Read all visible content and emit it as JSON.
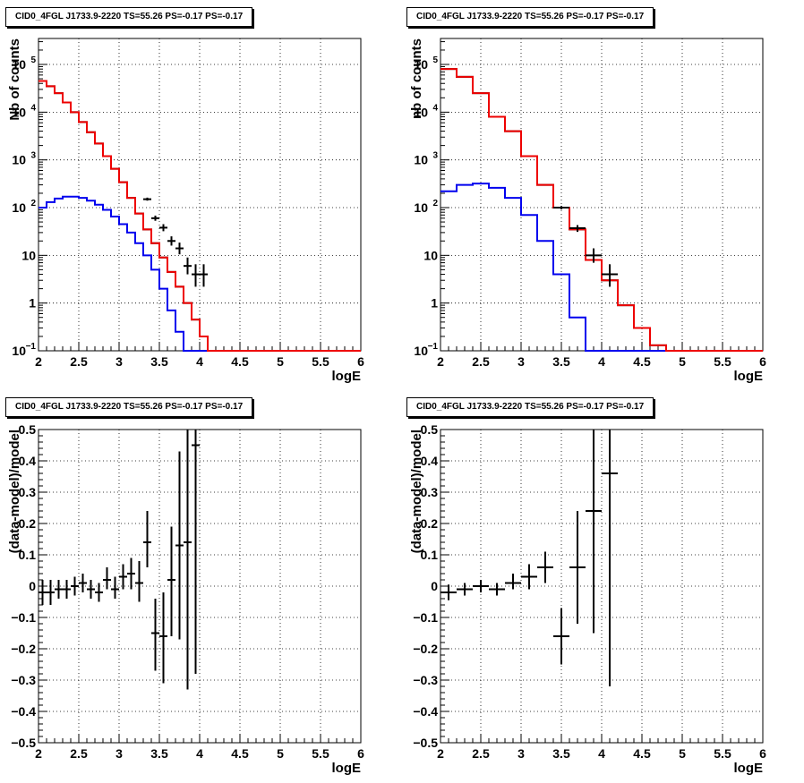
{
  "chart_data": [
    {
      "type": "line",
      "title": "CID0_4FGL J1733.9-2220 TS=55.26 PS=-0.17 PS=-0.17",
      "xlabel": "logE",
      "ylabel": "Nb of counts",
      "xlim": [
        2,
        6
      ],
      "ylim": [
        0.1,
        350000
      ],
      "yscale": "log",
      "grid": true,
      "xticks": [
        "2",
        "2.5",
        "3",
        "3.5",
        "4",
        "4.5",
        "5",
        "5.5",
        "6"
      ],
      "yticks": [
        {
          "value": 0.1,
          "label": "10",
          "exp": "−1"
        },
        {
          "value": 1,
          "label": "1",
          "exp": ""
        },
        {
          "value": 10,
          "label": "10",
          "exp": ""
        },
        {
          "value": 100,
          "label": "10",
          "exp": "2"
        },
        {
          "value": 1000,
          "label": "10",
          "exp": "3"
        },
        {
          "value": 10000,
          "label": "10",
          "exp": "4"
        },
        {
          "value": 100000,
          "label": "10",
          "exp": "5"
        }
      ],
      "bin_edges": [
        2.0,
        2.1,
        2.2,
        2.3,
        2.4,
        2.5,
        2.6,
        2.7,
        2.8,
        2.9,
        3.0,
        3.1,
        3.2,
        3.3,
        3.4,
        3.5,
        3.6,
        3.7,
        3.8,
        3.9,
        4.0,
        4.1,
        4.2,
        4.3,
        4.4,
        4.5,
        4.6,
        4.7,
        4.8,
        4.9,
        5.0,
        5.1,
        5.2,
        5.3,
        5.4,
        5.5,
        5.6,
        5.7,
        5.8,
        5.9,
        6.0
      ],
      "series": [
        {
          "name": "",
          "color": "#0000ee",
          "style": "step",
          "values": [
            100,
            130,
            155,
            170,
            170,
            160,
            140,
            115,
            90,
            65,
            45,
            30,
            18,
            10,
            5,
            2,
            0.7,
            0.25,
            0.1,
            0.1,
            0.1,
            0.1,
            0.1,
            0.1,
            0.1,
            0.1,
            0.1,
            0.1,
            0.1,
            0.1,
            0.1,
            0.1,
            0.1,
            0.1,
            0.1,
            0.1,
            0.1,
            0.1,
            0.1,
            0.1
          ]
        },
        {
          "name": "",
          "color": "#000000",
          "style": "step",
          "values": [
            45000,
            35000,
            25000,
            16000,
            10000,
            6200,
            3800,
            2200,
            1200,
            650,
            340,
            160,
            75,
            35,
            18,
            9,
            4.5,
            2.2,
            1.0,
            0.45,
            0.2,
            0.1,
            0.1,
            0.1,
            0.1,
            0.1,
            0.1,
            0.1,
            0.1,
            0.1,
            0.1,
            0.1,
            0.1,
            0.1,
            0.1,
            0.1,
            0.1,
            0.1,
            0.1,
            0.1
          ]
        },
        {
          "name": "",
          "color": "#ee0000",
          "style": "step",
          "values": [
            45000,
            35000,
            25000,
            16000,
            10000,
            6200,
            3800,
            2200,
            1200,
            650,
            340,
            160,
            75,
            35,
            18,
            9,
            4.5,
            2.2,
            1.0,
            0.45,
            0.2,
            0.1,
            0.1,
            0.1,
            0.1,
            0.1,
            0.1,
            0.1,
            0.1,
            0.1,
            0.1,
            0.1,
            0.1,
            0.1,
            0.1,
            0.1,
            0.1,
            0.1,
            0.1,
            0.1
          ]
        }
      ],
      "points": {
        "color": "#000000",
        "xerr": 0.05,
        "data": [
          {
            "x": 3.35,
            "y": 150,
            "lo": 140,
            "hi": 162
          },
          {
            "x": 3.45,
            "y": 60,
            "lo": 53,
            "hi": 68
          },
          {
            "x": 3.55,
            "y": 38,
            "lo": 32,
            "hi": 45
          },
          {
            "x": 3.65,
            "y": 20,
            "lo": 16,
            "hi": 25
          },
          {
            "x": 3.75,
            "y": 14,
            "lo": 10.5,
            "hi": 18.5
          },
          {
            "x": 3.85,
            "y": 6,
            "lo": 4,
            "hi": 9
          },
          {
            "x": 3.95,
            "y": 4,
            "lo": 2.2,
            "hi": 6.5
          },
          {
            "x": 4.05,
            "y": 4,
            "lo": 2.2,
            "hi": 6.5
          }
        ]
      }
    },
    {
      "type": "line",
      "title": "CID0_4FGL J1733.9-2220 TS=55.26 PS=-0.17 PS=-0.17",
      "xlabel": "logE",
      "ylabel": "nb of counts",
      "xlim": [
        2,
        6
      ],
      "ylim": [
        0.1,
        350000
      ],
      "yscale": "log",
      "grid": true,
      "xticks": [
        "2",
        "2.5",
        "3",
        "3.5",
        "4",
        "4.5",
        "5",
        "5.5",
        "6"
      ],
      "yticks": [
        {
          "value": 0.1,
          "label": "10",
          "exp": "−1"
        },
        {
          "value": 1,
          "label": "1",
          "exp": ""
        },
        {
          "value": 10,
          "label": "10",
          "exp": ""
        },
        {
          "value": 100,
          "label": "10",
          "exp": "2"
        },
        {
          "value": 1000,
          "label": "10",
          "exp": "3"
        },
        {
          "value": 10000,
          "label": "10",
          "exp": "4"
        },
        {
          "value": 100000,
          "label": "10",
          "exp": "5"
        }
      ],
      "bin_edges": [
        2.0,
        2.2,
        2.4,
        2.6,
        2.8,
        3.0,
        3.2,
        3.4,
        3.6,
        3.8,
        4.0,
        4.2,
        4.4,
        4.6,
        4.8,
        5.0,
        5.2,
        5.4,
        5.6,
        5.8,
        6.0
      ],
      "series": [
        {
          "name": "",
          "color": "#0000ee",
          "style": "step",
          "values": [
            220,
            300,
            320,
            260,
            160,
            70,
            20,
            4,
            0.5,
            0.1,
            0.1,
            0.1,
            0.1,
            0.1,
            0.1,
            0.1,
            0.1,
            0.1,
            0.1,
            0.1
          ]
        },
        {
          "name": "",
          "color": "#000000",
          "style": "step",
          "values": [
            80000,
            55000,
            25000,
            8000,
            4000,
            1200,
            300,
            100,
            35,
            8,
            3,
            0.9,
            0.3,
            0.13,
            0.1,
            0.1,
            0.1,
            0.1,
            0.1,
            0.1
          ]
        },
        {
          "name": "",
          "color": "#ee0000",
          "style": "step",
          "values": [
            80000,
            55000,
            25000,
            8000,
            4000,
            1200,
            300,
            100,
            35,
            8,
            3,
            0.9,
            0.3,
            0.13,
            0.1,
            0.1,
            0.1,
            0.1,
            0.1,
            0.1
          ]
        }
      ],
      "points": {
        "color": "#000000",
        "xerr": 0.1,
        "data": [
          {
            "x": 3.5,
            "y": 100,
            "lo": 92,
            "hi": 108
          },
          {
            "x": 3.7,
            "y": 37,
            "lo": 31,
            "hi": 43
          },
          {
            "x": 3.9,
            "y": 10,
            "lo": 7,
            "hi": 14
          },
          {
            "x": 4.1,
            "y": 4,
            "lo": 2.2,
            "hi": 6.5
          }
        ]
      }
    },
    {
      "type": "scatter",
      "title": "CID0_4FGL J1733.9-2220 TS=55.26 PS=-0.17 PS=-0.17",
      "xlabel": "logE",
      "ylabel": "(data-model)/model",
      "xlim": [
        2,
        6
      ],
      "ylim": [
        -0.5,
        0.5
      ],
      "yscale": "linear",
      "grid": true,
      "xticks": [
        "2",
        "2.5",
        "3",
        "3.5",
        "4",
        "4.5",
        "5",
        "5.5",
        "6"
      ],
      "yticks": [
        {
          "value": -0.5,
          "label": "−0.5"
        },
        {
          "value": -0.4,
          "label": "−0.4"
        },
        {
          "value": -0.3,
          "label": "−0.3"
        },
        {
          "value": -0.2,
          "label": "−0.2"
        },
        {
          "value": -0.1,
          "label": "−0.1"
        },
        {
          "value": 0,
          "label": "0"
        },
        {
          "value": 0.1,
          "label": "0.1"
        },
        {
          "value": 0.2,
          "label": "0.2"
        },
        {
          "value": 0.3,
          "label": "0.3"
        },
        {
          "value": 0.4,
          "label": "0.4"
        },
        {
          "value": 0.5,
          "label": "0.5"
        }
      ],
      "points": {
        "color": "#000000",
        "xerr": 0.05,
        "data": [
          {
            "x": 2.05,
            "y": -0.02,
            "lo": -0.06,
            "hi": 0.02
          },
          {
            "x": 2.15,
            "y": -0.02,
            "lo": -0.06,
            "hi": 0.02
          },
          {
            "x": 2.25,
            "y": -0.01,
            "lo": -0.04,
            "hi": 0.02
          },
          {
            "x": 2.35,
            "y": -0.01,
            "lo": -0.04,
            "hi": 0.02
          },
          {
            "x": 2.45,
            "y": 0.0,
            "lo": -0.03,
            "hi": 0.03
          },
          {
            "x": 2.55,
            "y": 0.01,
            "lo": -0.02,
            "hi": 0.04
          },
          {
            "x": 2.65,
            "y": -0.01,
            "lo": -0.04,
            "hi": 0.02
          },
          {
            "x": 2.75,
            "y": -0.02,
            "lo": -0.05,
            "hi": 0.01
          },
          {
            "x": 2.85,
            "y": 0.02,
            "lo": -0.01,
            "hi": 0.06
          },
          {
            "x": 2.95,
            "y": -0.01,
            "lo": -0.04,
            "hi": 0.03
          },
          {
            "x": 3.05,
            "y": 0.03,
            "lo": -0.01,
            "hi": 0.07
          },
          {
            "x": 3.15,
            "y": 0.04,
            "lo": -0.01,
            "hi": 0.09
          },
          {
            "x": 3.25,
            "y": 0.01,
            "lo": -0.05,
            "hi": 0.08
          },
          {
            "x": 3.35,
            "y": 0.14,
            "lo": 0.06,
            "hi": 0.24
          },
          {
            "x": 3.45,
            "y": -0.15,
            "lo": -0.27,
            "hi": -0.04
          },
          {
            "x": 3.55,
            "y": -0.16,
            "lo": -0.31,
            "hi": -0.02
          },
          {
            "x": 3.65,
            "y": 0.02,
            "lo": -0.16,
            "hi": 0.19
          },
          {
            "x": 3.75,
            "y": 0.13,
            "lo": -0.17,
            "hi": 0.43
          },
          {
            "x": 3.85,
            "y": 0.14,
            "lo": -0.33,
            "hi": 0.5
          },
          {
            "x": 3.95,
            "y": 0.45,
            "lo": -0.28,
            "hi": 0.5
          }
        ]
      }
    },
    {
      "type": "scatter",
      "title": "CID0_4FGL J1733.9-2220 TS=55.26 PS=-0.17 PS=-0.17",
      "xlabel": "logE",
      "ylabel": "(data-model)/model",
      "xlim": [
        2,
        6
      ],
      "ylim": [
        -0.5,
        0.5
      ],
      "yscale": "linear",
      "grid": true,
      "xticks": [
        "2",
        "2.5",
        "3",
        "3.5",
        "4",
        "4.5",
        "5",
        "5.5",
        "6"
      ],
      "yticks": [
        {
          "value": -0.5,
          "label": "−0.5"
        },
        {
          "value": -0.4,
          "label": "−0.4"
        },
        {
          "value": -0.3,
          "label": "−0.3"
        },
        {
          "value": -0.2,
          "label": "−0.2"
        },
        {
          "value": -0.1,
          "label": "−0.1"
        },
        {
          "value": 0,
          "label": "0"
        },
        {
          "value": 0.1,
          "label": "0.1"
        },
        {
          "value": 0.2,
          "label": "0.2"
        },
        {
          "value": 0.3,
          "label": "0.3"
        },
        {
          "value": 0.4,
          "label": "0.4"
        },
        {
          "value": 0.5,
          "label": "0.5"
        }
      ],
      "points": {
        "color": "#000000",
        "xerr": 0.1,
        "data": [
          {
            "x": 2.1,
            "y": -0.02,
            "lo": -0.045,
            "hi": 0.005
          },
          {
            "x": 2.3,
            "y": -0.01,
            "lo": -0.03,
            "hi": 0.01
          },
          {
            "x": 2.5,
            "y": 0.0,
            "lo": -0.02,
            "hi": 0.02
          },
          {
            "x": 2.7,
            "y": -0.01,
            "lo": -0.03,
            "hi": 0.01
          },
          {
            "x": 2.9,
            "y": 0.01,
            "lo": -0.01,
            "hi": 0.04
          },
          {
            "x": 3.1,
            "y": 0.03,
            "lo": -0.01,
            "hi": 0.07
          },
          {
            "x": 3.3,
            "y": 0.06,
            "lo": 0.01,
            "hi": 0.11
          },
          {
            "x": 3.5,
            "y": -0.16,
            "lo": -0.25,
            "hi": -0.07
          },
          {
            "x": 3.7,
            "y": 0.06,
            "lo": -0.12,
            "hi": 0.24
          },
          {
            "x": 3.9,
            "y": 0.24,
            "lo": -0.15,
            "hi": 0.5
          },
          {
            "x": 4.1,
            "y": 0.36,
            "lo": -0.32,
            "hi": 0.5
          }
        ]
      }
    }
  ]
}
